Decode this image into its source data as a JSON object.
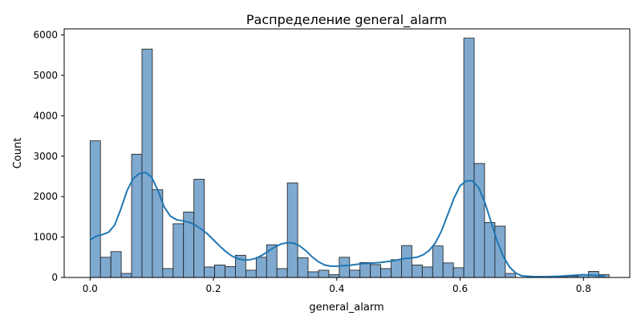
{
  "chart_data": {
    "type": "bar",
    "title": "Распределение general_alarm",
    "xlabel": "general_alarm",
    "ylabel": "Count",
    "xlim": [
      -0.042,
      0.875
    ],
    "ylim": [
      0,
      6150
    ],
    "xticks": [
      0.0,
      0.2,
      0.4,
      0.6,
      0.8
    ],
    "xtick_labels": [
      "0.0",
      "0.2",
      "0.4",
      "0.6",
      "0.8"
    ],
    "yticks": [
      0,
      1000,
      2000,
      3000,
      4000,
      5000,
      6000
    ],
    "ytick_labels": [
      "0",
      "1000",
      "2000",
      "3000",
      "4000",
      "5000",
      "6000"
    ],
    "grid": false,
    "bin_start": 0.0,
    "bin_width": 0.01683,
    "values": [
      3380,
      500,
      640,
      100,
      3050,
      5650,
      2170,
      220,
      1330,
      1620,
      2430,
      260,
      310,
      270,
      550,
      180,
      500,
      810,
      220,
      2340,
      490,
      140,
      180,
      70,
      500,
      180,
      370,
      320,
      220,
      440,
      790,
      310,
      260,
      780,
      360,
      240,
      5920,
      2820,
      1360,
      1270,
      100,
      0,
      0,
      0,
      0,
      10,
      30,
      60,
      150,
      70
    ],
    "kde": [
      [
        0.0,
        930
      ],
      [
        0.01,
        1020
      ],
      [
        0.02,
        1060
      ],
      [
        0.03,
        1120
      ],
      [
        0.04,
        1300
      ],
      [
        0.05,
        1700
      ],
      [
        0.06,
        2150
      ],
      [
        0.07,
        2450
      ],
      [
        0.08,
        2570
      ],
      [
        0.09,
        2600
      ],
      [
        0.1,
        2480
      ],
      [
        0.11,
        2150
      ],
      [
        0.12,
        1750
      ],
      [
        0.13,
        1520
      ],
      [
        0.14,
        1430
      ],
      [
        0.15,
        1400
      ],
      [
        0.16,
        1370
      ],
      [
        0.17,
        1300
      ],
      [
        0.18,
        1200
      ],
      [
        0.19,
        1080
      ],
      [
        0.2,
        930
      ],
      [
        0.21,
        780
      ],
      [
        0.22,
        640
      ],
      [
        0.23,
        530
      ],
      [
        0.24,
        460
      ],
      [
        0.25,
        430
      ],
      [
        0.26,
        440
      ],
      [
        0.27,
        480
      ],
      [
        0.28,
        560
      ],
      [
        0.29,
        660
      ],
      [
        0.3,
        760
      ],
      [
        0.31,
        830
      ],
      [
        0.32,
        860
      ],
      [
        0.33,
        850
      ],
      [
        0.34,
        780
      ],
      [
        0.35,
        660
      ],
      [
        0.36,
        510
      ],
      [
        0.37,
        390
      ],
      [
        0.38,
        310
      ],
      [
        0.39,
        280
      ],
      [
        0.4,
        280
      ],
      [
        0.41,
        290
      ],
      [
        0.42,
        300
      ],
      [
        0.43,
        320
      ],
      [
        0.44,
        340
      ],
      [
        0.45,
        350
      ],
      [
        0.46,
        360
      ],
      [
        0.47,
        370
      ],
      [
        0.48,
        390
      ],
      [
        0.49,
        410
      ],
      [
        0.5,
        440
      ],
      [
        0.51,
        470
      ],
      [
        0.52,
        480
      ],
      [
        0.53,
        500
      ],
      [
        0.54,
        560
      ],
      [
        0.55,
        670
      ],
      [
        0.56,
        860
      ],
      [
        0.57,
        1160
      ],
      [
        0.58,
        1560
      ],
      [
        0.59,
        1960
      ],
      [
        0.6,
        2270
      ],
      [
        0.61,
        2390
      ],
      [
        0.62,
        2390
      ],
      [
        0.63,
        2220
      ],
      [
        0.64,
        1860
      ],
      [
        0.65,
        1380
      ],
      [
        0.66,
        900
      ],
      [
        0.67,
        520
      ],
      [
        0.68,
        260
      ],
      [
        0.69,
        110
      ],
      [
        0.7,
        40
      ],
      [
        0.72,
        20
      ],
      [
        0.74,
        20
      ],
      [
        0.76,
        30
      ],
      [
        0.78,
        50
      ],
      [
        0.8,
        70
      ],
      [
        0.82,
        50
      ],
      [
        0.835,
        30
      ]
    ],
    "bar_color": "#1f77b4",
    "bar_fill": "#7fa9cf",
    "kde_color": "#1f77b4"
  }
}
